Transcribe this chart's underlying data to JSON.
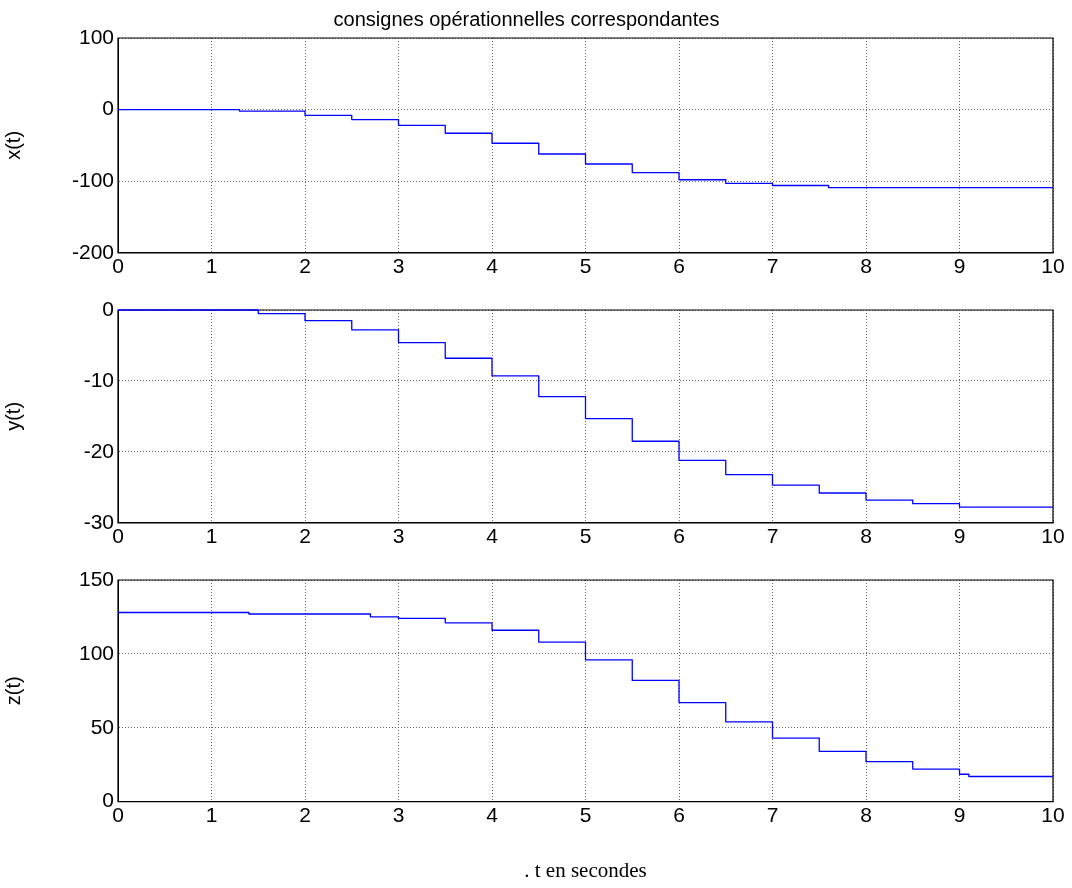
{
  "chart_data": [
    {
      "type": "step",
      "title": "consignes opérationnelles correspondantes",
      "ylabel": "x(t)",
      "x": [
        0,
        1.3,
        2,
        2.5,
        3,
        3.5,
        4,
        4.5,
        5,
        5.5,
        6,
        6.5,
        7,
        7.6,
        10
      ],
      "series": [
        {
          "color": "#0000ff",
          "values": [
            0,
            -2,
            -8,
            -14,
            -22,
            -33,
            -47,
            -62,
            -76,
            -88,
            -98,
            -103,
            -106,
            -109,
            -109
          ]
        }
      ],
      "xlim": [
        0,
        10
      ],
      "xticks": [
        0,
        1,
        2,
        3,
        4,
        5,
        6,
        7,
        8,
        9,
        10
      ],
      "ylim": [
        -200,
        100
      ],
      "yticks": [
        -200,
        -100,
        0,
        100
      ],
      "grid": true,
      "line_style": "solid"
    },
    {
      "type": "step",
      "ylabel": "y(t)",
      "x": [
        0,
        1,
        1.5,
        2,
        2.5,
        3,
        3.5,
        4,
        4.5,
        5,
        5.5,
        6,
        6.5,
        7,
        7.5,
        8,
        8.5,
        9,
        10
      ],
      "series": [
        {
          "color": "#0000ff",
          "values": [
            0,
            0,
            -0.5,
            -1.5,
            -2.8,
            -4.6,
            -6.8,
            -9.3,
            -12.2,
            -15.3,
            -18.5,
            -21.2,
            -23.2,
            -24.7,
            -25.8,
            -26.8,
            -27.3,
            -27.8,
            -27.8
          ]
        }
      ],
      "xlim": [
        0,
        10
      ],
      "xticks": [
        0,
        1,
        2,
        3,
        4,
        5,
        6,
        7,
        8,
        9,
        10
      ],
      "ylim": [
        -30,
        0
      ],
      "yticks": [
        -30,
        -20,
        -10,
        0
      ],
      "grid": true,
      "line_style": "solid"
    },
    {
      "type": "step",
      "ylabel": "z(t)",
      "xlabel": ". t en secondes",
      "x": [
        0,
        1.4,
        2.7,
        3,
        3.5,
        4,
        4.5,
        5,
        5.5,
        6,
        6.5,
        7,
        7.5,
        8,
        8.5,
        9,
        9.1,
        10
      ],
      "series": [
        {
          "color": "#0000ff",
          "values": [
            128,
            127,
            125,
            124,
            121,
            116,
            108,
            96,
            82,
            67,
            54,
            43,
            34,
            27,
            22,
            18.5,
            17,
            17
          ]
        }
      ],
      "xlim": [
        0,
        10
      ],
      "xticks": [
        0,
        1,
        2,
        3,
        4,
        5,
        6,
        7,
        8,
        9,
        10
      ],
      "ylim": [
        0,
        150
      ],
      "yticks": [
        0,
        50,
        100,
        150
      ],
      "grid": true,
      "line_style": "solid"
    }
  ]
}
